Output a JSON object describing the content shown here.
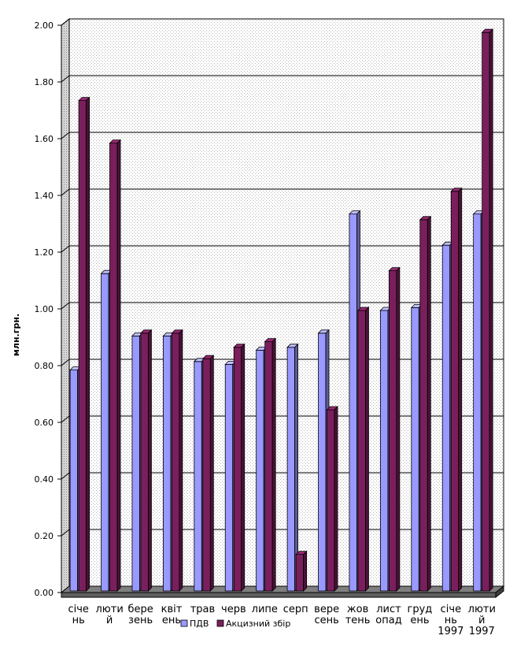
{
  "chart_data": {
    "type": "bar",
    "ylabel": "млн.грн.",
    "ylim": [
      0,
      2.0
    ],
    "ytick_step": 0.2,
    "ytick_labels": [
      "0.00",
      "0.20",
      "0.40",
      "0.60",
      "0.80",
      "1.00",
      "1.20",
      "1.40",
      "1.60",
      "1.80",
      "2.00"
    ],
    "grid": true,
    "legend_position": "bottom",
    "categories": [
      [
        "січе",
        "нь"
      ],
      [
        "люти",
        "й"
      ],
      [
        "бере",
        "зень"
      ],
      [
        "квіт",
        "ень"
      ],
      [
        "трав",
        ""
      ],
      [
        "черв",
        ""
      ],
      [
        "липе",
        ""
      ],
      [
        "серп",
        ""
      ],
      [
        "вере",
        "сень"
      ],
      [
        "жов",
        "тень"
      ],
      [
        "лист",
        "опад"
      ],
      [
        "груд",
        "ень"
      ],
      [
        "січе",
        "нь",
        "1997"
      ],
      [
        "люти",
        "й",
        "1997"
      ]
    ],
    "series": [
      {
        "name": "ПДВ",
        "color": "#9999ff",
        "values": [
          0.79,
          1.13,
          0.91,
          0.91,
          0.82,
          0.81,
          0.86,
          0.87,
          0.92,
          1.34,
          1.0,
          1.01,
          1.23,
          1.34
        ]
      },
      {
        "name": "Акцизний збір",
        "color": "#7a1f5c",
        "values": [
          1.74,
          1.59,
          0.92,
          0.92,
          0.83,
          0.87,
          0.89,
          0.14,
          0.65,
          1.0,
          1.14,
          1.32,
          1.42,
          1.98
        ]
      }
    ]
  }
}
